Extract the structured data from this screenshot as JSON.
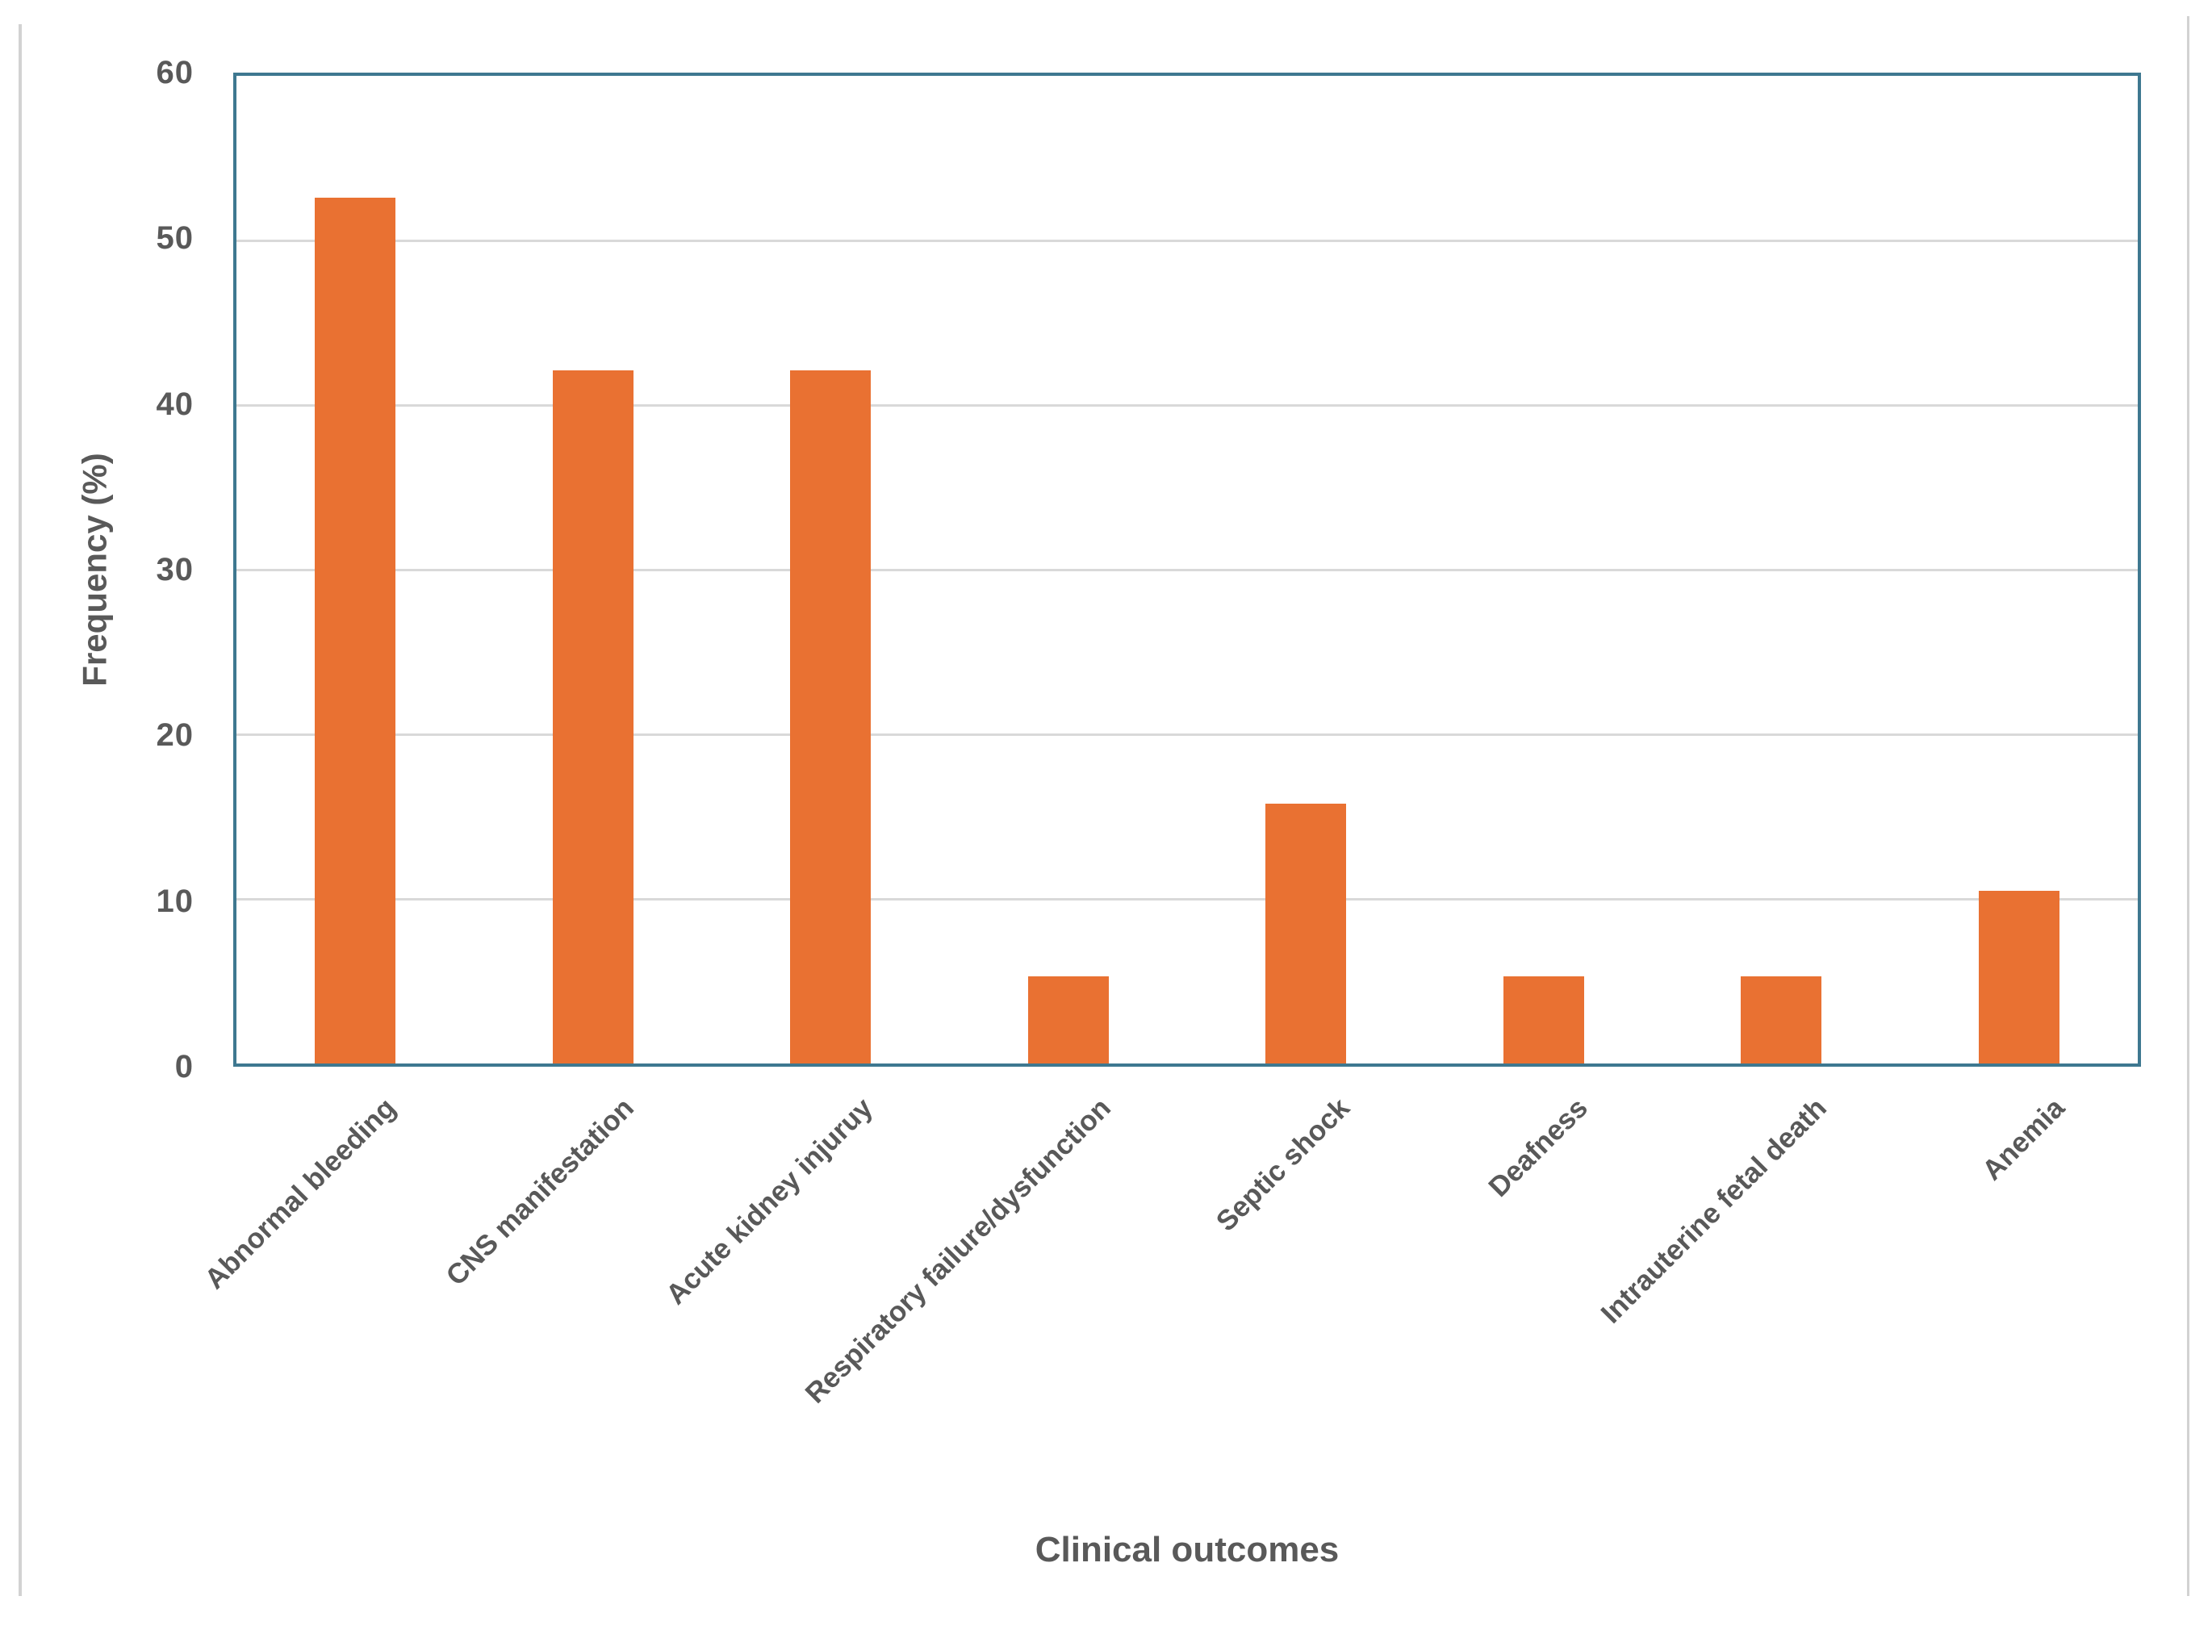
{
  "chart_data": {
    "type": "bar",
    "title": "",
    "xlabel": "Clinical outcomes",
    "ylabel": "Frequency (%)",
    "categories": [
      "Abnormal bleeding",
      "CNS manifestation",
      "Acute kidney injuruy",
      "Respiratory failure/dysfunction",
      "Septic shock",
      "Deafness",
      "Intrauterine fetal death",
      "Anemia"
    ],
    "values": [
      52.6,
      42.1,
      42.1,
      5.3,
      15.8,
      5.3,
      5.3,
      10.5
    ],
    "ylim": [
      0,
      60
    ],
    "yticks": [
      0,
      10,
      20,
      30,
      40,
      50,
      60
    ],
    "grid": true,
    "legend_position": "none",
    "bar_color": "#e97132",
    "plot_border_color": "#3e7890",
    "gridline_color": "#d9d9d9",
    "text_color": "#595959",
    "xlabel_rotation_deg": 45
  }
}
